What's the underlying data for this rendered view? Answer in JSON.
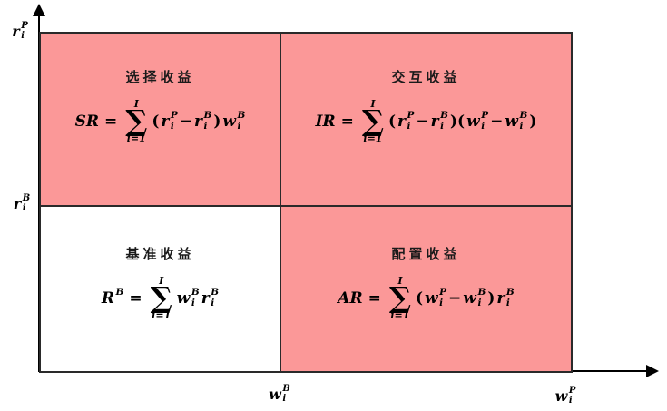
{
  "colors": {
    "pink": "#fb9898",
    "white": "#ffffff",
    "line": "#2a2a2a",
    "text": "#000000"
  },
  "axes": {
    "y_top_label": {
      "tokens": [
        {
          "t": "var",
          "b": "r",
          "sup": "P",
          "sub": "i"
        }
      ]
    },
    "y_mid_label": {
      "tokens": [
        {
          "t": "var",
          "b": "r",
          "sup": "B",
          "sub": "i"
        }
      ]
    },
    "x_mid_label": {
      "tokens": [
        {
          "t": "var",
          "b": "w",
          "sup": "B",
          "sub": "i"
        }
      ]
    },
    "x_right_label": {
      "tokens": [
        {
          "t": "var",
          "b": "w",
          "sup": "P",
          "sub": "i"
        }
      ]
    }
  },
  "quadrants": {
    "top_left": {
      "title": "选择收益",
      "fill": "pink",
      "formula_tokens": [
        {
          "t": "it",
          "v": "SR"
        },
        {
          "t": "txt",
          "v": "="
        },
        {
          "t": "sum",
          "top": "I",
          "bot": "i=1"
        },
        {
          "t": "txt",
          "v": "("
        },
        {
          "t": "var",
          "b": "r",
          "sup": "P",
          "sub": "i"
        },
        {
          "t": "txt",
          "v": "−"
        },
        {
          "t": "var",
          "b": "r",
          "sup": "B",
          "sub": "i"
        },
        {
          "t": "txt",
          "v": ")"
        },
        {
          "t": "var",
          "b": "w",
          "sup": "B",
          "sub": "i"
        }
      ]
    },
    "top_right": {
      "title": "交互收益",
      "fill": "pink",
      "formula_tokens": [
        {
          "t": "it",
          "v": "IR"
        },
        {
          "t": "txt",
          "v": "="
        },
        {
          "t": "sum",
          "top": "I",
          "bot": "i=1"
        },
        {
          "t": "txt",
          "v": "("
        },
        {
          "t": "var",
          "b": "r",
          "sup": "P",
          "sub": "i"
        },
        {
          "t": "txt",
          "v": "−"
        },
        {
          "t": "var",
          "b": "r",
          "sup": "B",
          "sub": "i"
        },
        {
          "t": "txt",
          "v": ")("
        },
        {
          "t": "var",
          "b": "w",
          "sup": "P",
          "sub": "i"
        },
        {
          "t": "txt",
          "v": "−"
        },
        {
          "t": "var",
          "b": "w",
          "sup": "B",
          "sub": "i"
        },
        {
          "t": "txt",
          "v": ")"
        }
      ]
    },
    "bottom_left": {
      "title": "基准收益",
      "fill": "white",
      "formula_tokens": [
        {
          "t": "var",
          "b": "R",
          "sup": "B",
          "sub": ""
        },
        {
          "t": "txt",
          "v": "="
        },
        {
          "t": "sum",
          "top": "I",
          "bot": "i=1"
        },
        {
          "t": "var",
          "b": "w",
          "sup": "B",
          "sub": "i"
        },
        {
          "t": "var",
          "b": "r",
          "sup": "B",
          "sub": "i"
        }
      ]
    },
    "bottom_right": {
      "title": "配置收益",
      "fill": "pink",
      "formula_tokens": [
        {
          "t": "it",
          "v": "AR"
        },
        {
          "t": "txt",
          "v": "="
        },
        {
          "t": "sum",
          "top": "I",
          "bot": "i=1"
        },
        {
          "t": "txt",
          "v": "("
        },
        {
          "t": "var",
          "b": "w",
          "sup": "P",
          "sub": "i"
        },
        {
          "t": "txt",
          "v": "−"
        },
        {
          "t": "var",
          "b": "w",
          "sup": "B",
          "sub": "i"
        },
        {
          "t": "txt",
          "v": ")"
        },
        {
          "t": "var",
          "b": "r",
          "sup": "B",
          "sub": "i"
        }
      ]
    }
  }
}
